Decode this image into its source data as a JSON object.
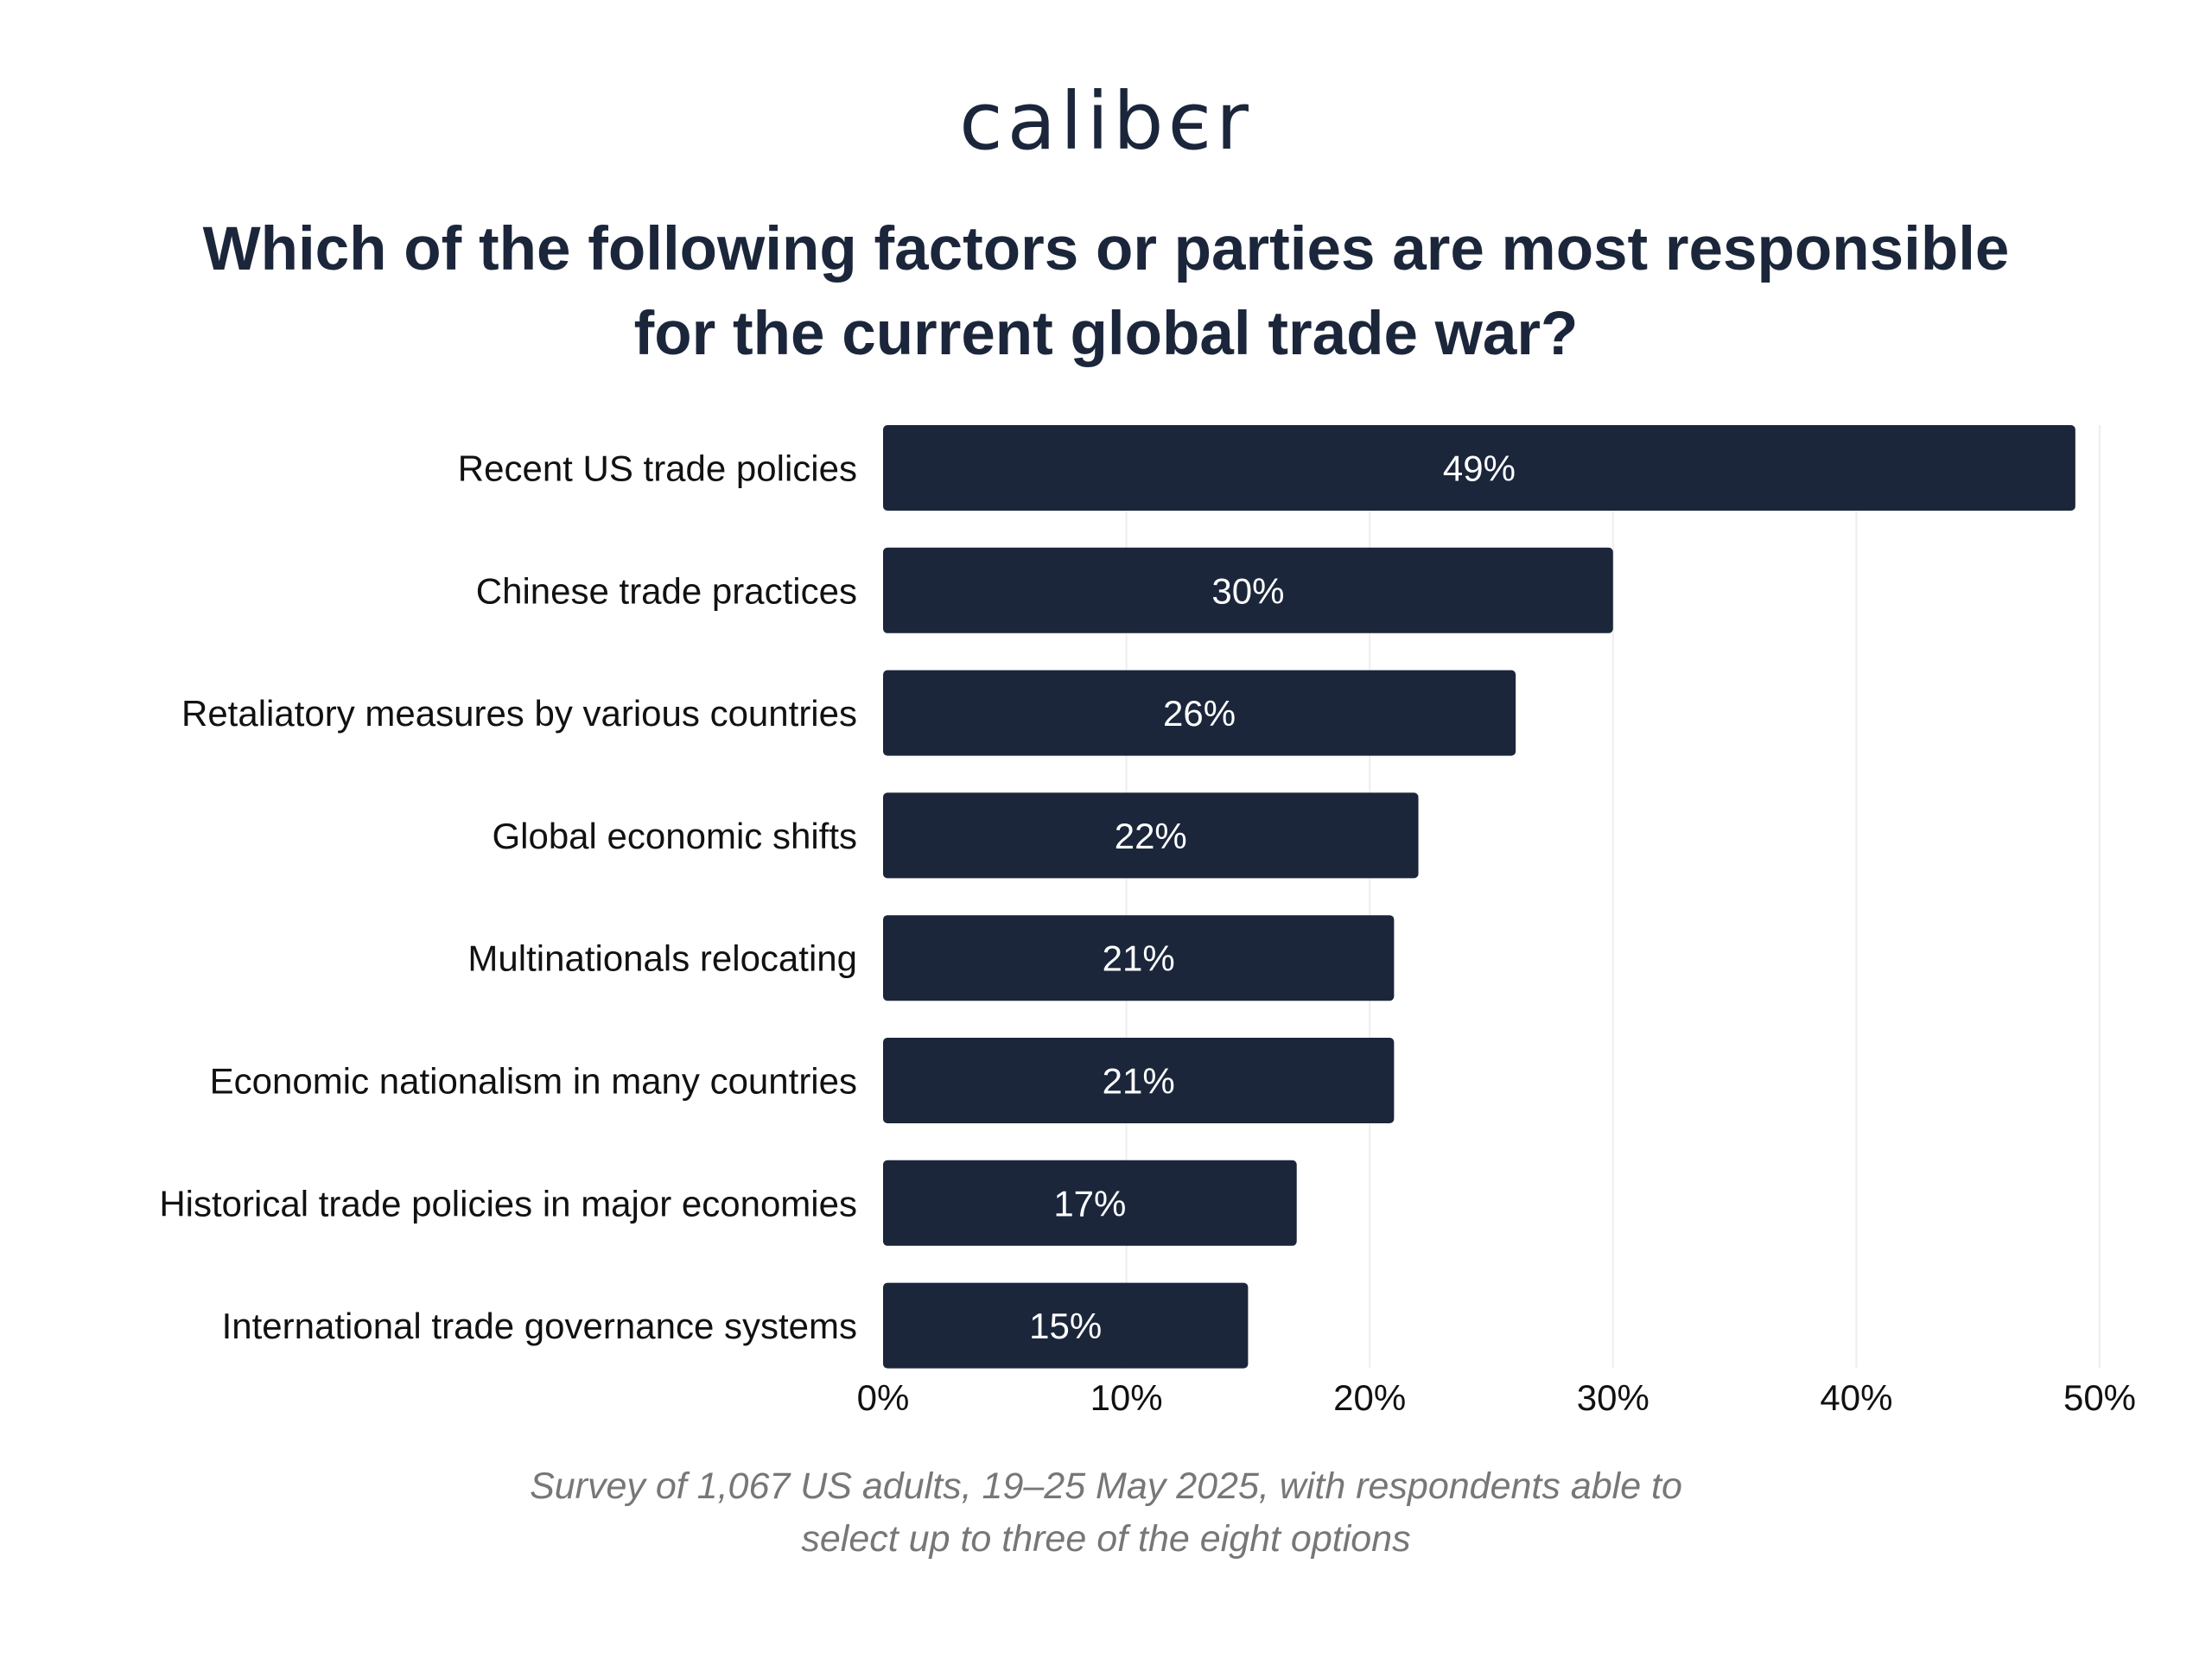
{
  "brand": {
    "logo_text": "calibєr"
  },
  "header": {
    "title_line1": "Which of the following factors or parties are most responsible",
    "title_line2": "for the current global trade war?"
  },
  "colors": {
    "bar": "#1b263b",
    "bar_label": "#ffffff",
    "grid": "#eeeeee",
    "text": "#1b263b",
    "note": "#777777"
  },
  "chart_data": {
    "type": "bar",
    "orientation": "horizontal",
    "categories": [
      "Recent US trade policies",
      "Chinese trade practices",
      "Retaliatory measures by various countries",
      "Global economic shifts",
      "Multinationals relocating",
      "Economic nationalism in many countries",
      "Historical trade policies in major economies",
      "International trade governance systems"
    ],
    "values": [
      49,
      30,
      26,
      22,
      21,
      21,
      17,
      15
    ],
    "value_labels": [
      "49%",
      "30%",
      "26%",
      "22%",
      "21%",
      "21%",
      "17%",
      "15%"
    ],
    "xlim": [
      0,
      50
    ],
    "x_ticks": [
      0,
      10,
      20,
      30,
      40,
      50
    ],
    "x_tick_labels": [
      "0%",
      "10%",
      "20%",
      "30%",
      "40%",
      "50%"
    ],
    "grid": true,
    "legend": "none"
  },
  "footer": {
    "note_line1": "Survey of 1,067 US adults, 19–25 May 2025, with respondents able to",
    "note_line2": "select up to three of the eight options"
  }
}
